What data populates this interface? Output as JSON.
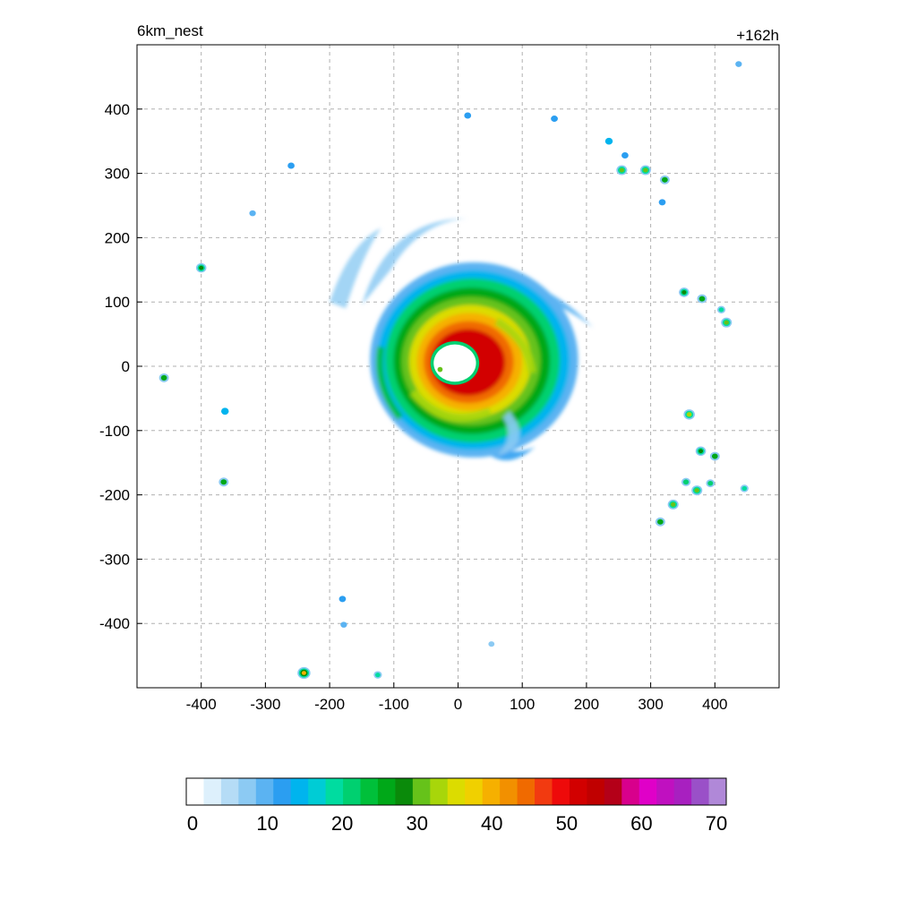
{
  "chart_data": {
    "type": "heatmap",
    "title_left": "6km_nest",
    "title_right": "+162h",
    "xlabel": "",
    "ylabel": "",
    "xlim": [
      -500,
      500
    ],
    "ylim": [
      -500,
      500
    ],
    "grid": true,
    "x_ticks": [
      -400,
      -300,
      -200,
      -100,
      0,
      100,
      200,
      300,
      400
    ],
    "y_ticks": [
      400,
      300,
      200,
      100,
      0,
      -100,
      -200,
      -300,
      -400
    ],
    "colorbar": {
      "min": 0,
      "max": 70,
      "ticks": [
        0,
        10,
        20,
        30,
        40,
        50,
        60,
        70
      ],
      "placement": "bottom"
    },
    "features": {
      "eye": {
        "x": -5,
        "y": 5,
        "value": 0
      },
      "inner_core": {
        "x": 25,
        "y": 10,
        "peak_value": 52
      },
      "rainbands": [
        {
          "name": "",
          "x": 80,
          "y": 115,
          "value": 15
        },
        {
          "name": "",
          "x": -35,
          "y": 175,
          "value": 12
        },
        {
          "name": "",
          "x": 45,
          "y": -140,
          "value": 12
        }
      ],
      "isolated_cells": [
        {
          "x": 255,
          "y": 305,
          "value": 30
        },
        {
          "x": 292,
          "y": 305,
          "value": 30
        },
        {
          "x": 322,
          "y": 290,
          "value": 25
        },
        {
          "x": 235,
          "y": 350,
          "value": 15
        },
        {
          "x": 260,
          "y": 328,
          "value": 12
        },
        {
          "x": 150,
          "y": 385,
          "value": 12
        },
        {
          "x": 15,
          "y": 390,
          "value": 12
        },
        {
          "x": 318,
          "y": 255,
          "value": 12
        },
        {
          "x": 352,
          "y": 115,
          "value": 28
        },
        {
          "x": 380,
          "y": 105,
          "value": 25
        },
        {
          "x": 418,
          "y": 68,
          "value": 30
        },
        {
          "x": 410,
          "y": 88,
          "value": 18
        },
        {
          "x": 360,
          "y": -75,
          "value": 32
        },
        {
          "x": 378,
          "y": -132,
          "value": 28
        },
        {
          "x": 400,
          "y": -140,
          "value": 25
        },
        {
          "x": 355,
          "y": -180,
          "value": 22
        },
        {
          "x": 372,
          "y": -193,
          "value": 30
        },
        {
          "x": 393,
          "y": -182,
          "value": 20
        },
        {
          "x": 335,
          "y": -215,
          "value": 30
        },
        {
          "x": 315,
          "y": -242,
          "value": 25
        },
        {
          "x": 446,
          "y": -190,
          "value": 18
        },
        {
          "x": 437,
          "y": 470,
          "value": 10
        },
        {
          "x": -400,
          "y": 153,
          "value": 28
        },
        {
          "x": -458,
          "y": -18,
          "value": 25
        },
        {
          "x": -363,
          "y": -70,
          "value": 15
        },
        {
          "x": -365,
          "y": -180,
          "value": 25
        },
        {
          "x": -260,
          "y": 312,
          "value": 12
        },
        {
          "x": -320,
          "y": 238,
          "value": 10
        },
        {
          "x": -240,
          "y": -477,
          "value": 40
        },
        {
          "x": -125,
          "y": -480,
          "value": 18
        },
        {
          "x": -180,
          "y": -362,
          "value": 12
        },
        {
          "x": -178,
          "y": -402,
          "value": 10
        },
        {
          "x": 52,
          "y": -432,
          "value": 8
        }
      ]
    }
  },
  "colors": {
    "scale": [
      "#ffffff",
      "#ddf0fc",
      "#b5dcf6",
      "#8ccaf3",
      "#5bb3f2",
      "#2b9ef1",
      "#00b4ee",
      "#00ccd5",
      "#00dca0",
      "#00d070",
      "#00c03a",
      "#00a818",
      "#0a8a0a",
      "#66c21a",
      "#a8d60a",
      "#dcdc00",
      "#f0d000",
      "#f6b000",
      "#f29000",
      "#f06a00",
      "#f23a10",
      "#ee0a0a",
      "#d20000",
      "#c00000",
      "#b40018",
      "#d8008c",
      "#e000c8",
      "#c010c0",
      "#a820c0",
      "#9a50c8",
      "#b088d8"
    ]
  }
}
